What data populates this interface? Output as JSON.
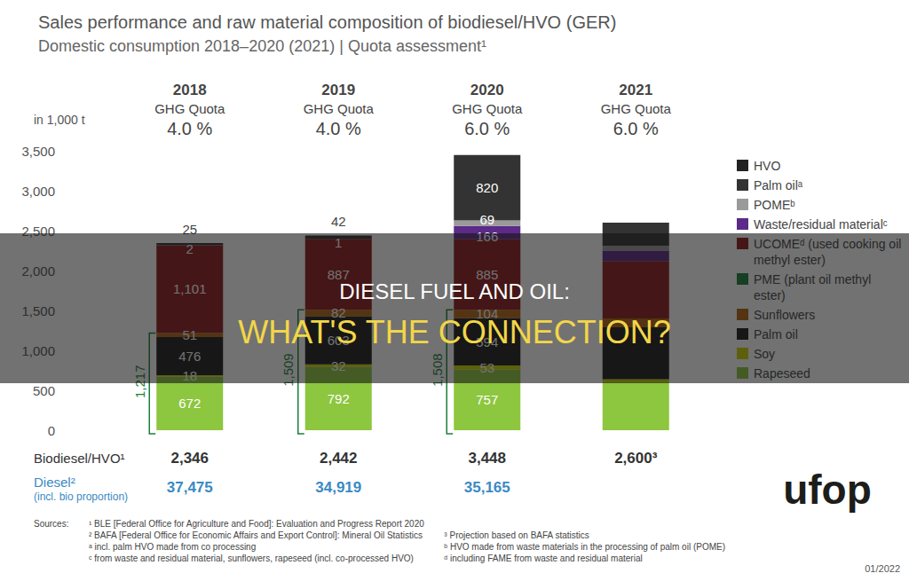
{
  "chart_data": {
    "type": "bar",
    "title": "Sales performance and raw material composition of biodiesel/HVO (GER)",
    "subtitle": "Domestic consumption 2018–2020 (2021) | Quota assessment¹",
    "y_unit_label": "in 1,000 t",
    "categories": [
      "2018",
      "2019",
      "2020",
      "2021"
    ],
    "quota_label": "GHG Quota",
    "quotas": [
      {
        "value": 4.0,
        "label": "4.0 %"
      },
      {
        "value": 4.0,
        "label": "4.0 %"
      },
      {
        "value": 6.0,
        "label": "6.0 %"
      },
      {
        "value": 6.0,
        "label": "6.0 %"
      }
    ],
    "ylim": [
      0,
      3500
    ],
    "yticks": [
      0,
      500,
      {
        "value": 1000,
        "label": "1,000"
      },
      {
        "value": 1500,
        "label": "1,500"
      },
      {
        "value": 2000,
        "label": "2,000"
      },
      {
        "value": 2500,
        "label": "2,500"
      },
      {
        "value": 3000,
        "label": "3,000"
      },
      {
        "value": 3500,
        "label": "3,500"
      }
    ],
    "grid": false,
    "stacked": true,
    "data_labels": true,
    "legend": "right",
    "legend_groups": [
      {
        "name": "HVO",
        "color": "#222222"
      },
      {
        "name": "PME (plant oil methyl ester)",
        "color": "#1b7f3b"
      }
    ],
    "series": [
      {
        "name": "Rapeseed",
        "group": "PME (plant oil methyl ester)",
        "color": "#8dc63f",
        "values": [
          672,
          792,
          757,
          600
        ],
        "value_labels": [
          "672",
          "792",
          "757",
          null
        ]
      },
      {
        "name": "Soy",
        "group": "PME (plant oil methyl ester)",
        "color": "#c9d300",
        "values": [
          18,
          32,
          53,
          40
        ],
        "value_labels": [
          "18",
          "32",
          "53",
          null
        ]
      },
      {
        "name": "Palm oil",
        "group": "PME (plant oil methyl ester)",
        "color": "#1c1c1c",
        "values": [
          476,
          603,
          594,
          650
        ],
        "value_labels": [
          "476",
          "603",
          "594",
          null
        ]
      },
      {
        "name": "Sunflowers",
        "group": "PME (plant oil methyl ester)",
        "color": "#b3650f",
        "values": [
          51,
          82,
          104,
          110
        ],
        "value_labels": [
          "51",
          "82",
          "104",
          null
        ]
      },
      {
        "name": "UCOMEᵈ (used cooking oil methyl ester)",
        "color": "#8e1b1d",
        "values": [
          1101,
          887,
          885,
          720
        ],
        "value_labels": [
          "1,101",
          "887",
          "885",
          null
        ]
      },
      {
        "name": "Waste/residual materialᶜ",
        "group": "HVO",
        "color": "#5c2a88",
        "values": [
          2,
          1,
          166,
          130
        ],
        "value_labels": [
          "2",
          "1",
          "166",
          null
        ]
      },
      {
        "name": "POMEᵇ",
        "group": "HVO",
        "color": "#9a9a9a",
        "values": [
          0,
          0,
          69,
          60
        ],
        "value_labels": [
          null,
          null,
          "69",
          null
        ]
      },
      {
        "name": "Palm oilᵃ",
        "group": "HVO",
        "color": "#333333",
        "values": [
          25,
          42,
          820,
          290
        ],
        "value_labels": [
          "25",
          "42",
          "820",
          null
        ]
      }
    ],
    "pme_totals": {
      "color": "#1b7f3b",
      "values": [
        1217,
        1509,
        1508,
        null
      ],
      "value_labels": [
        "1,217",
        "1,509",
        "1,508",
        null
      ]
    },
    "table_rows": [
      {
        "label": "Biodiesel/HVO¹",
        "color": "#333333",
        "values": [
          2346,
          2442,
          3448,
          2600
        ],
        "value_labels": [
          "2,346",
          "2,442",
          "3,448",
          "2,600³"
        ]
      },
      {
        "label": "Diesel²",
        "sublabel": "(incl. bio proportion)",
        "color": "#3a8ac4",
        "values": [
          37475,
          34919,
          35165,
          null
        ],
        "value_labels": [
          "37,475",
          "34,919",
          "35,165",
          null
        ]
      }
    ],
    "sources_label": "Sources:",
    "footnotes": [
      [
        "¹ BLE [Federal Office for Agriculture and Food]: Evaluation and Progress Report 2020"
      ],
      [
        "² BAFA [Federal Office for Economic Affairs and Export Control]: Mineral Oil Statistics",
        "³ Projection based on BAFA statistics"
      ],
      [
        "ᵃ incl. palm HVO made from co processing",
        "ᵇ HVO made from waste materials in the processing of palm oil (POME)"
      ],
      [
        "ᶜ from waste and residual material, sunflowers, rapeseed (incl. co-processed HVO)",
        "ᵈ including FAME from waste and residual material"
      ]
    ],
    "logo": "ufop",
    "date": "01/2022"
  },
  "banner": [
    "DIESEL FUEL AND OIL:",
    "WHAT'S THE CONNECTION?"
  ]
}
